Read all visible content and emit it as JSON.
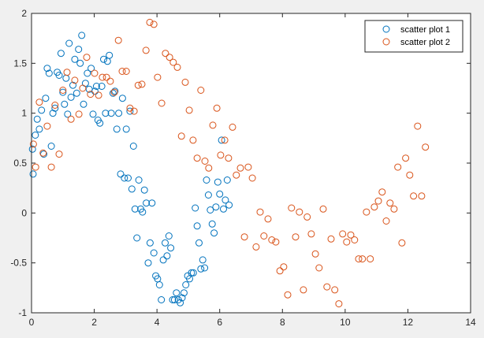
{
  "chart_data": {
    "type": "scatter",
    "xlim": [
      0,
      14
    ],
    "ylim": [
      -1,
      2
    ],
    "xticks": [
      0,
      2,
      4,
      6,
      8,
      10,
      12,
      14
    ],
    "yticks": [
      -1,
      -0.5,
      0,
      0.5,
      1,
      1.5,
      2
    ],
    "grid": false,
    "legend": "top-right",
    "marker": "open-circle",
    "series": [
      {
        "name": "scatter plot 1",
        "color": "#0072bd",
        "points": [
          [
            0.03,
            0.64
          ],
          [
            0.05,
            0.39
          ],
          [
            0.12,
            0.78
          ],
          [
            0.18,
            0.94
          ],
          [
            0.25,
            0.84
          ],
          [
            0.32,
            1.03
          ],
          [
            0.39,
            0.59
          ],
          [
            0.45,
            1.15
          ],
          [
            0.5,
            1.45
          ],
          [
            0.56,
            1.4
          ],
          [
            0.63,
            0.67
          ],
          [
            0.68,
            1.0
          ],
          [
            0.75,
            1.05
          ],
          [
            0.82,
            1.41
          ],
          [
            0.88,
            1.38
          ],
          [
            0.94,
            1.6
          ],
          [
            1.0,
            1.21
          ],
          [
            1.05,
            1.09
          ],
          [
            1.1,
            1.35
          ],
          [
            1.15,
            0.99
          ],
          [
            1.2,
            1.7
          ],
          [
            1.26,
            1.16
          ],
          [
            1.32,
            1.28
          ],
          [
            1.38,
            1.54
          ],
          [
            1.44,
            1.2
          ],
          [
            1.5,
            1.64
          ],
          [
            1.55,
            1.5
          ],
          [
            1.6,
            1.78
          ],
          [
            1.66,
            1.09
          ],
          [
            1.72,
            1.3
          ],
          [
            1.78,
            1.4
          ],
          [
            1.84,
            1.24
          ],
          [
            1.9,
            1.45
          ],
          [
            1.96,
            0.99
          ],
          [
            2.02,
            1.22
          ],
          [
            2.07,
            1.27
          ],
          [
            2.12,
            0.93
          ],
          [
            2.18,
            0.9
          ],
          [
            2.24,
            1.27
          ],
          [
            2.3,
            1.54
          ],
          [
            2.36,
            1.0
          ],
          [
            2.42,
            1.52
          ],
          [
            2.48,
            1.58
          ],
          [
            2.54,
            1.0
          ],
          [
            2.6,
            1.2
          ],
          [
            2.66,
            1.22
          ],
          [
            2.72,
            0.84
          ],
          [
            2.78,
            1.0
          ],
          [
            2.84,
            0.39
          ],
          [
            2.9,
            1.15
          ],
          [
            2.96,
            0.35
          ],
          [
            3.02,
            0.84
          ],
          [
            3.08,
            0.35
          ],
          [
            3.14,
            1.02
          ],
          [
            3.2,
            0.24
          ],
          [
            3.25,
            0.67
          ],
          [
            3.3,
            0.04
          ],
          [
            3.36,
            -0.25
          ],
          [
            3.42,
            0.33
          ],
          [
            3.48,
            0.04
          ],
          [
            3.54,
            0.01
          ],
          [
            3.6,
            0.23
          ],
          [
            3.66,
            0.1
          ],
          [
            3.72,
            -0.5
          ],
          [
            3.78,
            -0.3
          ],
          [
            3.84,
            0.1
          ],
          [
            3.9,
            -0.4
          ],
          [
            3.96,
            -0.63
          ],
          [
            4.02,
            -0.66
          ],
          [
            4.08,
            -0.72
          ],
          [
            4.14,
            -0.87
          ],
          [
            4.2,
            -0.47
          ],
          [
            4.26,
            -0.3
          ],
          [
            4.32,
            -0.43
          ],
          [
            4.38,
            -0.23
          ],
          [
            4.44,
            -0.35
          ],
          [
            4.5,
            -0.87
          ],
          [
            4.56,
            -0.87
          ],
          [
            4.62,
            -0.8
          ],
          [
            4.68,
            -0.87
          ],
          [
            4.74,
            -0.9
          ],
          [
            4.8,
            -0.85
          ],
          [
            4.86,
            -0.8
          ],
          [
            4.92,
            -0.72
          ],
          [
            4.98,
            -0.63
          ],
          [
            5.04,
            -0.66
          ],
          [
            5.1,
            -0.6
          ],
          [
            5.16,
            -0.6
          ],
          [
            5.22,
            0.05
          ],
          [
            5.28,
            -0.13
          ],
          [
            5.34,
            -0.3
          ],
          [
            5.4,
            -0.56
          ],
          [
            5.46,
            -0.47
          ],
          [
            5.52,
            -0.55
          ],
          [
            5.58,
            0.33
          ],
          [
            5.64,
            0.18
          ],
          [
            5.7,
            0.03
          ],
          [
            5.76,
            -0.11
          ],
          [
            5.82,
            -0.2
          ],
          [
            5.88,
            0.06
          ],
          [
            5.94,
            0.31
          ],
          [
            6.0,
            0.19
          ],
          [
            6.06,
            0.73
          ],
          [
            6.12,
            0.04
          ],
          [
            6.18,
            0.13
          ],
          [
            6.24,
            0.33
          ],
          [
            6.3,
            0.08
          ]
        ]
      },
      {
        "name": "scatter plot 2",
        "color": "#d95319",
        "points": [
          [
            0.06,
            0.69
          ],
          [
            0.13,
            0.46
          ],
          [
            0.25,
            1.11
          ],
          [
            0.37,
            0.6
          ],
          [
            0.5,
            0.87
          ],
          [
            0.63,
            0.46
          ],
          [
            0.75,
            1.08
          ],
          [
            0.88,
            0.59
          ],
          [
            1.0,
            1.23
          ],
          [
            1.13,
            1.41
          ],
          [
            1.26,
            0.94
          ],
          [
            1.38,
            1.33
          ],
          [
            1.51,
            0.99
          ],
          [
            1.63,
            1.25
          ],
          [
            1.76,
            1.56
          ],
          [
            1.88,
            1.19
          ],
          [
            2.01,
            1.4
          ],
          [
            2.14,
            1.18
          ],
          [
            2.26,
            1.36
          ],
          [
            2.39,
            1.36
          ],
          [
            2.51,
            1.32
          ],
          [
            2.64,
            1.21
          ],
          [
            2.77,
            1.73
          ],
          [
            2.89,
            1.42
          ],
          [
            3.02,
            1.42
          ],
          [
            3.14,
            1.05
          ],
          [
            3.27,
            1.02
          ],
          [
            3.4,
            1.28
          ],
          [
            3.52,
            1.29
          ],
          [
            3.65,
            1.63
          ],
          [
            3.77,
            1.91
          ],
          [
            3.9,
            1.89
          ],
          [
            4.02,
            1.36
          ],
          [
            4.15,
            1.1
          ],
          [
            4.27,
            1.6
          ],
          [
            4.4,
            1.56
          ],
          [
            4.52,
            1.51
          ],
          [
            4.65,
            1.46
          ],
          [
            4.78,
            0.77
          ],
          [
            4.9,
            1.31
          ],
          [
            5.03,
            1.03
          ],
          [
            5.15,
            0.73
          ],
          [
            5.28,
            0.55
          ],
          [
            5.4,
            1.23
          ],
          [
            5.53,
            0.52
          ],
          [
            5.65,
            0.45
          ],
          [
            5.78,
            0.88
          ],
          [
            5.91,
            1.05
          ],
          [
            6.03,
            0.58
          ],
          [
            6.16,
            0.73
          ],
          [
            6.28,
            0.55
          ],
          [
            6.41,
            0.86
          ],
          [
            6.53,
            0.38
          ],
          [
            6.66,
            0.45
          ],
          [
            6.79,
            -0.24
          ],
          [
            6.91,
            0.46
          ],
          [
            7.04,
            0.35
          ],
          [
            7.16,
            -0.34
          ],
          [
            7.29,
            0.01
          ],
          [
            7.41,
            -0.23
          ],
          [
            7.54,
            -0.06
          ],
          [
            7.66,
            -0.27
          ],
          [
            7.79,
            -0.29
          ],
          [
            7.92,
            -0.58
          ],
          [
            8.04,
            -0.54
          ],
          [
            8.17,
            -0.82
          ],
          [
            8.29,
            0.05
          ],
          [
            8.42,
            -0.24
          ],
          [
            8.54,
            0.01
          ],
          [
            8.67,
            -0.77
          ],
          [
            8.79,
            -0.04
          ],
          [
            8.92,
            -0.21
          ],
          [
            9.05,
            -0.41
          ],
          [
            9.17,
            -0.55
          ],
          [
            9.3,
            0.04
          ],
          [
            9.42,
            -0.74
          ],
          [
            9.55,
            -0.26
          ],
          [
            9.67,
            -0.77
          ],
          [
            9.8,
            -0.91
          ],
          [
            9.92,
            -0.21
          ],
          [
            10.05,
            -0.29
          ],
          [
            10.18,
            -0.22
          ],
          [
            10.3,
            -0.27
          ],
          [
            10.43,
            -0.46
          ],
          [
            10.55,
            -0.46
          ],
          [
            10.68,
            0.01
          ],
          [
            10.8,
            -0.46
          ],
          [
            10.93,
            0.06
          ],
          [
            11.06,
            0.12
          ],
          [
            11.18,
            0.21
          ],
          [
            11.31,
            -0.08
          ],
          [
            11.43,
            0.1
          ],
          [
            11.56,
            0.04
          ],
          [
            11.68,
            0.46
          ],
          [
            11.81,
            -0.3
          ],
          [
            11.93,
            0.55
          ],
          [
            12.06,
            0.38
          ],
          [
            12.18,
            0.17
          ],
          [
            12.31,
            0.87
          ],
          [
            12.44,
            0.17
          ],
          [
            12.56,
            0.66
          ]
        ]
      }
    ]
  }
}
